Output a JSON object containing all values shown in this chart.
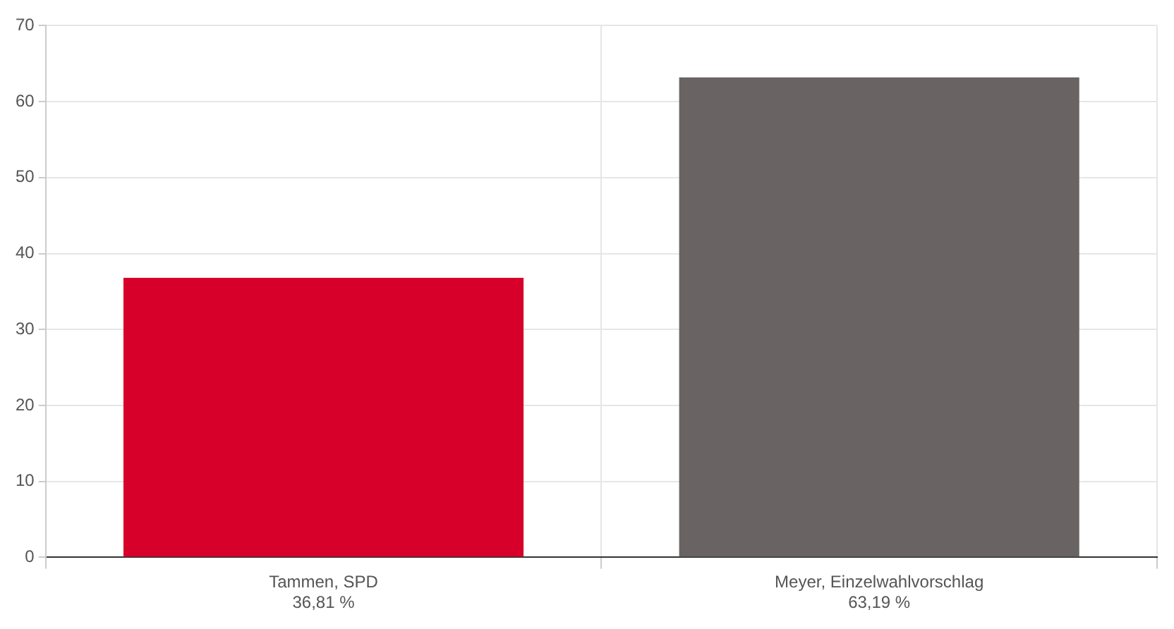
{
  "chart_data": {
    "type": "bar",
    "categories": [
      "Tammen, SPD",
      "Meyer, Einzelwahlvorschlag"
    ],
    "values": [
      36.81,
      63.19
    ],
    "colors": [
      "#d7002a",
      "#6a6363"
    ],
    "value_labels": [
      "36,81 %",
      "63,19 %"
    ],
    "ylim": [
      0,
      70
    ],
    "yticks": [
      0,
      10,
      20,
      30,
      40,
      50,
      60,
      70
    ],
    "grid": true,
    "legend": false
  }
}
